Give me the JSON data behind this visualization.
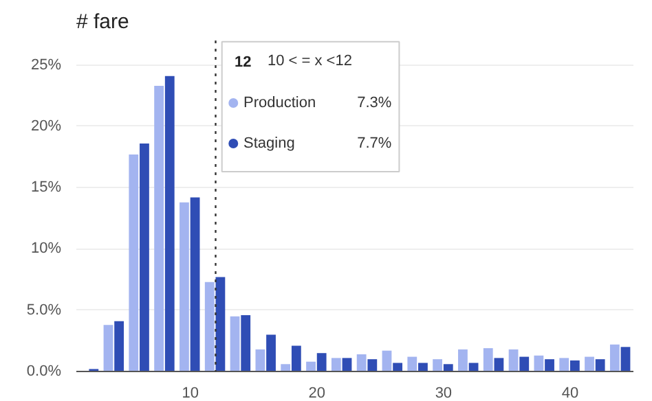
{
  "chart_data": {
    "type": "histogram",
    "title": "# fare",
    "bins": [
      1,
      3,
      5,
      7,
      9,
      11,
      13,
      15,
      17,
      19,
      21,
      23,
      25,
      27,
      29,
      31,
      33,
      35,
      37,
      39,
      41,
      43,
      45
    ],
    "series": [
      {
        "name": "Production",
        "color": "#a3b4f0",
        "values": [
          0,
          3.8,
          17.7,
          23.3,
          13.8,
          7.3,
          4.5,
          1.8,
          0.6,
          0.8,
          1.1,
          1.4,
          1.7,
          1.2,
          1.0,
          1.8,
          1.9,
          1.8,
          1.3,
          1.1,
          1.2,
          2.2
        ]
      },
      {
        "name": "Staging",
        "color": "#2f4db5",
        "values": [
          0.2,
          4.1,
          18.6,
          24.1,
          14.2,
          7.7,
          4.6,
          3.0,
          2.1,
          1.5,
          1.1,
          1.0,
          0.7,
          0.7,
          0.6,
          0.7,
          1.1,
          1.2,
          1.0,
          0.9,
          1.0,
          2.0
        ]
      }
    ],
    "xlim": [
      1,
      45
    ],
    "xticks": [
      10,
      20,
      30,
      40
    ],
    "ylim": [
      0,
      27
    ],
    "yticks": [
      {
        "value": 0,
        "label": "0.0%"
      },
      {
        "value": 5,
        "label": "5.0%"
      },
      {
        "value": 10,
        "label": "10%"
      },
      {
        "value": 15,
        "label": "15%"
      },
      {
        "value": 20,
        "label": "20%"
      },
      {
        "value": 25,
        "label": "25%"
      }
    ],
    "grid": "y",
    "legend": "top",
    "ref_lines": [
      {
        "axis": "x",
        "value": 12,
        "line_style": "dotted",
        "color": "#333333"
      }
    ],
    "annotations": [
      "12",
      "10 < = x <12",
      "7.3%",
      "7.7%"
    ]
  }
}
